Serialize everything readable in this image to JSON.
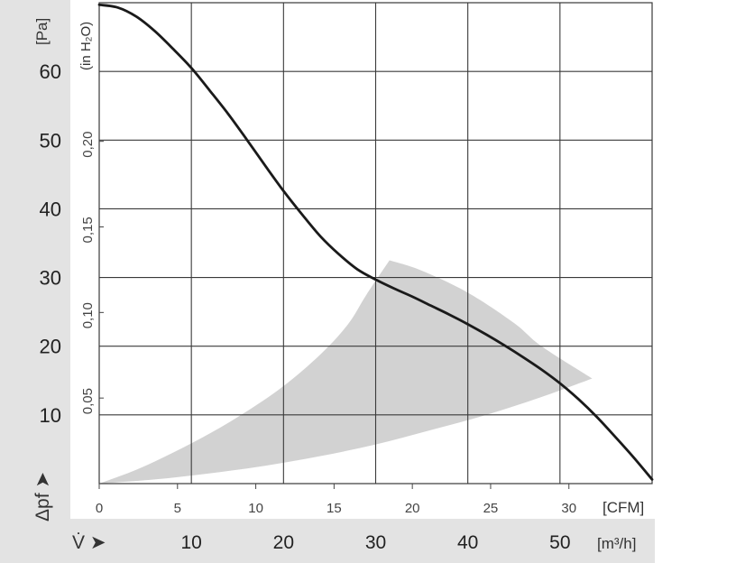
{
  "chart_data": {
    "type": "line",
    "x_unit_cfm": "[CFM]",
    "x_unit_m3h": "[m³/h]",
    "y_unit_pa": "[Pa]",
    "y_unit_inh2o": "(in H₂O)",
    "y_axis_symbol": "Δpf ➤",
    "x_axis_symbol": "V̇ ➤",
    "x_ticks_cfm": [
      "0",
      "5",
      "10",
      "15",
      "20",
      "25",
      "30"
    ],
    "x_ticks_m3h": [
      "10",
      "20",
      "30",
      "40",
      "50"
    ],
    "y_ticks_pa": [
      "10",
      "20",
      "30",
      "40",
      "50",
      "60"
    ],
    "y_ticks_inh2o": [
      "0,05",
      "0,10",
      "0,15",
      "0,20"
    ],
    "xlim_m3h": [
      0,
      60
    ],
    "ylim_pa": [
      0,
      70
    ],
    "grid": true,
    "background": {
      "label_band": "#e3e3e3",
      "operating_zone": "#d2d2d2",
      "curve": "#1a1a1a"
    },
    "series": [
      {
        "x_m3h": [
          0,
          2,
          4,
          6,
          8,
          10,
          12,
          14,
          16,
          18,
          20,
          22,
          24,
          26,
          28,
          30,
          32,
          34,
          36,
          38,
          40,
          42,
          44,
          46,
          48,
          50,
          52,
          54,
          56,
          58,
          60
        ],
        "y_pa": [
          69.7,
          69.3,
          68.0,
          65.9,
          63.3,
          60.5,
          57.2,
          53.8,
          50.1,
          46.3,
          42.6,
          39.2,
          36.0,
          33.4,
          31.2,
          29.7,
          28.4,
          27.2,
          25.9,
          24.6,
          23.2,
          21.7,
          20.1,
          18.4,
          16.6,
          14.6,
          12.3,
          9.7,
          6.8,
          3.8,
          0.6
        ]
      }
    ],
    "operating_zone": {
      "upper_edge": {
        "x_m3h": [
          0,
          4,
          8,
          12,
          16,
          20,
          24,
          27,
          29,
          31.5
        ],
        "y_pa": [
          0,
          2.0,
          4.5,
          7.3,
          10.5,
          14.2,
          18.8,
          23.2,
          27.5,
          32.5
        ]
      },
      "outer_edge": {
        "x_m3h": [
          31.5,
          35,
          40,
          45,
          48,
          53.5
        ],
        "y_pa": [
          32.5,
          31.0,
          27.8,
          23.4,
          20.0,
          15.3
        ]
      },
      "lower_edge": {
        "x_m3h": [
          53.5,
          48,
          42,
          36,
          30,
          24,
          18,
          12,
          6,
          0
        ],
        "y_pa": [
          15.3,
          12.6,
          10.0,
          7.8,
          5.7,
          4.0,
          2.6,
          1.5,
          0.6,
          0
        ]
      }
    }
  }
}
